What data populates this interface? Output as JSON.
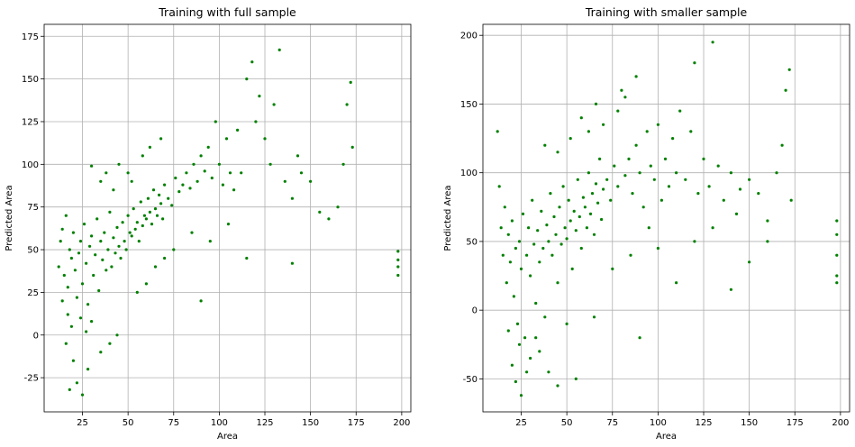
{
  "figure": {
    "background": "#ffffff",
    "point_color": "#008000",
    "grid": true
  },
  "chart_data": [
    {
      "type": "scatter",
      "title": "Training with full sample",
      "xlabel": "Area",
      "ylabel": "Predicted Area",
      "xlim": [
        4,
        205
      ],
      "ylim": [
        -45,
        182
      ],
      "xticks": [
        25,
        50,
        75,
        100,
        125,
        150,
        175,
        200
      ],
      "yticks": [
        -25,
        0,
        25,
        50,
        75,
        100,
        125,
        150,
        175
      ],
      "grid": true,
      "color": "#008000",
      "points": [
        [
          12,
          40
        ],
        [
          13,
          55
        ],
        [
          14,
          62
        ],
        [
          15,
          35
        ],
        [
          16,
          70
        ],
        [
          17,
          28
        ],
        [
          18,
          50
        ],
        [
          19,
          45
        ],
        [
          20,
          60
        ],
        [
          21,
          38
        ],
        [
          22,
          22
        ],
        [
          23,
          48
        ],
        [
          24,
          55
        ],
        [
          25,
          30
        ],
        [
          26,
          65
        ],
        [
          27,
          42
        ],
        [
          28,
          18
        ],
        [
          29,
          52
        ],
        [
          30,
          58
        ],
        [
          31,
          35
        ],
        [
          32,
          47
        ],
        [
          33,
          68
        ],
        [
          34,
          26
        ],
        [
          35,
          55
        ],
        [
          36,
          44
        ],
        [
          37,
          60
        ],
        [
          38,
          38
        ],
        [
          39,
          50
        ],
        [
          40,
          72
        ],
        [
          41,
          40
        ],
        [
          42,
          57
        ],
        [
          43,
          48
        ],
        [
          44,
          63
        ],
        [
          45,
          52
        ],
        [
          46,
          45
        ],
        [
          47,
          66
        ],
        [
          48,
          55
        ],
        [
          49,
          50
        ],
        [
          50,
          70
        ],
        [
          51,
          60
        ],
        [
          52,
          58
        ],
        [
          53,
          74
        ],
        [
          54,
          62
        ],
        [
          55,
          66
        ],
        [
          56,
          55
        ],
        [
          57,
          78
        ],
        [
          58,
          64
        ],
        [
          59,
          70
        ],
        [
          60,
          68
        ],
        [
          61,
          80
        ],
        [
          62,
          72
        ],
        [
          63,
          65
        ],
        [
          64,
          85
        ],
        [
          65,
          74
        ],
        [
          66,
          70
        ],
        [
          67,
          82
        ],
        [
          68,
          77
        ],
        [
          69,
          68
        ],
        [
          70,
          88
        ],
        [
          72,
          80
        ],
        [
          74,
          76
        ],
        [
          76,
          92
        ],
        [
          78,
          84
        ],
        [
          80,
          88
        ],
        [
          82,
          95
        ],
        [
          84,
          86
        ],
        [
          86,
          100
        ],
        [
          88,
          90
        ],
        [
          90,
          105
        ],
        [
          92,
          96
        ],
        [
          94,
          110
        ],
        [
          96,
          92
        ],
        [
          98,
          125
        ],
        [
          100,
          100
        ],
        [
          102,
          88
        ],
        [
          104,
          115
        ],
        [
          106,
          95
        ],
        [
          108,
          85
        ],
        [
          110,
          120
        ],
        [
          112,
          95
        ],
        [
          115,
          150
        ],
        [
          118,
          160
        ],
        [
          120,
          125
        ],
        [
          122,
          140
        ],
        [
          125,
          115
        ],
        [
          128,
          100
        ],
        [
          130,
          135
        ],
        [
          133,
          167
        ],
        [
          136,
          90
        ],
        [
          140,
          80
        ],
        [
          143,
          105
        ],
        [
          145,
          95
        ],
        [
          150,
          90
        ],
        [
          155,
          72
        ],
        [
          160,
          68
        ],
        [
          165,
          75
        ],
        [
          168,
          100
        ],
        [
          170,
          135
        ],
        [
          172,
          148
        ],
        [
          173,
          110
        ],
        [
          198,
          49
        ],
        [
          198,
          44
        ],
        [
          198,
          40
        ],
        [
          198,
          35
        ],
        [
          18,
          -32
        ],
        [
          20,
          -15
        ],
        [
          22,
          -28
        ],
        [
          25,
          -35
        ],
        [
          28,
          -20
        ],
        [
          16,
          -5
        ],
        [
          19,
          5
        ],
        [
          24,
          10
        ],
        [
          14,
          20
        ],
        [
          17,
          12
        ],
        [
          27,
          2
        ],
        [
          30,
          8
        ],
        [
          35,
          -10
        ],
        [
          40,
          -5
        ],
        [
          44,
          0
        ],
        [
          55,
          25
        ],
        [
          60,
          30
        ],
        [
          65,
          40
        ],
        [
          70,
          45
        ],
        [
          75,
          50
        ],
        [
          85,
          60
        ],
        [
          90,
          20
        ],
        [
          95,
          55
        ],
        [
          105,
          65
        ],
        [
          115,
          45
        ],
        [
          140,
          42
        ],
        [
          30,
          99
        ],
        [
          35,
          90
        ],
        [
          38,
          95
        ],
        [
          42,
          85
        ],
        [
          45,
          100
        ],
        [
          50,
          95
        ],
        [
          52,
          90
        ],
        [
          58,
          105
        ],
        [
          62,
          110
        ],
        [
          68,
          115
        ]
      ]
    },
    {
      "type": "scatter",
      "title": "Training with smaller sample",
      "xlabel": "Area",
      "ylabel": "Predicted Area",
      "xlim": [
        4,
        205
      ],
      "ylim": [
        -74,
        208
      ],
      "xticks": [
        25,
        50,
        75,
        100,
        125,
        150,
        175,
        200
      ],
      "yticks": [
        -50,
        0,
        50,
        100,
        150,
        200
      ],
      "grid": true,
      "color": "#008000",
      "points": [
        [
          12,
          130
        ],
        [
          13,
          90
        ],
        [
          14,
          60
        ],
        [
          15,
          40
        ],
        [
          16,
          75
        ],
        [
          17,
          20
        ],
        [
          18,
          55
        ],
        [
          19,
          35
        ],
        [
          20,
          65
        ],
        [
          21,
          10
        ],
        [
          22,
          45
        ],
        [
          23,
          -10
        ],
        [
          24,
          50
        ],
        [
          25,
          30
        ],
        [
          26,
          70
        ],
        [
          27,
          -20
        ],
        [
          28,
          40
        ],
        [
          29,
          60
        ],
        [
          30,
          25
        ],
        [
          31,
          80
        ],
        [
          32,
          48
        ],
        [
          33,
          5
        ],
        [
          34,
          58
        ],
        [
          35,
          35
        ],
        [
          36,
          72
        ],
        [
          37,
          45
        ],
        [
          38,
          -5
        ],
        [
          39,
          62
        ],
        [
          40,
          50
        ],
        [
          41,
          85
        ],
        [
          42,
          40
        ],
        [
          43,
          68
        ],
        [
          44,
          55
        ],
        [
          45,
          20
        ],
        [
          46,
          75
        ],
        [
          47,
          48
        ],
        [
          48,
          90
        ],
        [
          49,
          60
        ],
        [
          50,
          52
        ],
        [
          51,
          80
        ],
        [
          52,
          65
        ],
        [
          53,
          30
        ],
        [
          54,
          72
        ],
        [
          55,
          58
        ],
        [
          56,
          95
        ],
        [
          57,
          68
        ],
        [
          58,
          45
        ],
        [
          59,
          82
        ],
        [
          60,
          75
        ],
        [
          61,
          60
        ],
        [
          62,
          100
        ],
        [
          63,
          70
        ],
        [
          64,
          85
        ],
        [
          65,
          55
        ],
        [
          66,
          92
        ],
        [
          67,
          78
        ],
        [
          68,
          110
        ],
        [
          69,
          66
        ],
        [
          70,
          88
        ],
        [
          72,
          95
        ],
        [
          74,
          80
        ],
        [
          76,
          105
        ],
        [
          78,
          90
        ],
        [
          80,
          160
        ],
        [
          82,
          98
        ],
        [
          84,
          110
        ],
        [
          86,
          85
        ],
        [
          88,
          120
        ],
        [
          90,
          100
        ],
        [
          92,
          75
        ],
        [
          94,
          130
        ],
        [
          96,
          105
        ],
        [
          98,
          95
        ],
        [
          100,
          135
        ],
        [
          102,
          80
        ],
        [
          104,
          110
        ],
        [
          106,
          90
        ],
        [
          108,
          125
        ],
        [
          110,
          100
        ],
        [
          112,
          145
        ],
        [
          115,
          95
        ],
        [
          118,
          130
        ],
        [
          120,
          180
        ],
        [
          122,
          85
        ],
        [
          125,
          110
        ],
        [
          128,
          90
        ],
        [
          130,
          195
        ],
        [
          133,
          105
        ],
        [
          136,
          80
        ],
        [
          140,
          100
        ],
        [
          143,
          70
        ],
        [
          145,
          88
        ],
        [
          150,
          95
        ],
        [
          155,
          85
        ],
        [
          160,
          65
        ],
        [
          165,
          100
        ],
        [
          168,
          120
        ],
        [
          170,
          160
        ],
        [
          172,
          175
        ],
        [
          173,
          80
        ],
        [
          198,
          65
        ],
        [
          198,
          55
        ],
        [
          198,
          40
        ],
        [
          198,
          25
        ],
        [
          198,
          20
        ],
        [
          20,
          -40
        ],
        [
          22,
          -52
        ],
        [
          25,
          -62
        ],
        [
          28,
          -45
        ],
        [
          30,
          -35
        ],
        [
          35,
          -30
        ],
        [
          40,
          -45
        ],
        [
          45,
          -55
        ],
        [
          55,
          -50
        ],
        [
          18,
          -15
        ],
        [
          24,
          -25
        ],
        [
          33,
          -20
        ],
        [
          50,
          -10
        ],
        [
          65,
          -5
        ],
        [
          90,
          -20
        ],
        [
          100,
          45
        ],
        [
          110,
          20
        ],
        [
          120,
          50
        ],
        [
          130,
          60
        ],
        [
          140,
          15
        ],
        [
          150,
          35
        ],
        [
          160,
          50
        ],
        [
          95,
          60
        ],
        [
          85,
          40
        ],
        [
          75,
          30
        ],
        [
          38,
          120
        ],
        [
          45,
          115
        ],
        [
          52,
          125
        ],
        [
          58,
          140
        ],
        [
          62,
          130
        ],
        [
          66,
          150
        ],
        [
          70,
          135
        ],
        [
          78,
          145
        ],
        [
          82,
          155
        ],
        [
          88,
          170
        ]
      ]
    }
  ]
}
